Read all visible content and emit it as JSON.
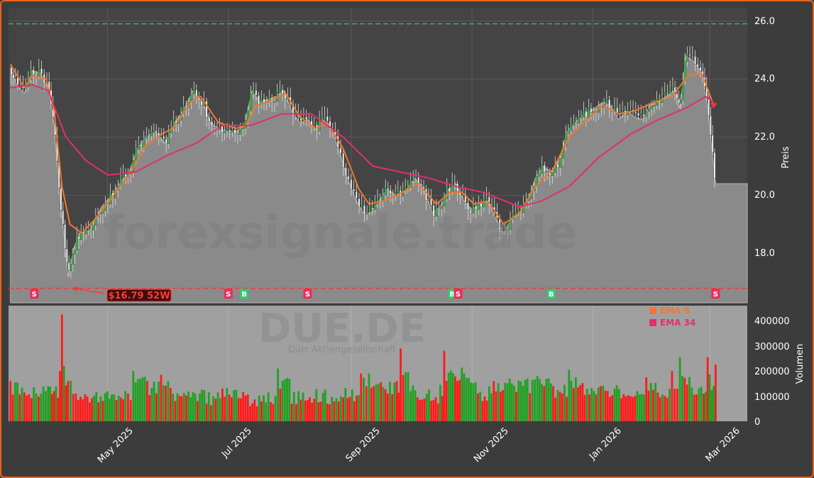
{
  "chart_data": [
    {
      "type": "candlestick",
      "ticker": "DUE.DE",
      "ticker_subtitle": "Dürr Aktiengesellschaft",
      "watermark": "forexsignale.trade",
      "ylabel": "Preis",
      "ylim": [
        16.3,
        26.45
      ],
      "yticks": [
        "18.0",
        "20.0",
        "22.0",
        "24.0",
        "26.0"
      ],
      "xlabels": [
        "May 2025",
        "Jul 2025",
        "Sep 2025",
        "Nov 2025",
        "Jan 2026",
        "Mar 2026"
      ],
      "x_range": [
        "2025-03-12",
        "2026-03-20"
      ],
      "price_points": [
        [
          "2025-03-13",
          24.4
        ],
        [
          "2025-03-16",
          23.8
        ],
        [
          "2025-03-20",
          23.5
        ],
        [
          "2025-03-24",
          24.3
        ],
        [
          "2025-03-28",
          24.2
        ],
        [
          "2025-04-01",
          23.7
        ],
        [
          "2025-04-04",
          22.4
        ],
        [
          "2025-04-07",
          19.8
        ],
        [
          "2025-04-09",
          18.6
        ],
        [
          "2025-04-11",
          17.2
        ],
        [
          "2025-04-14",
          18.2
        ],
        [
          "2025-04-17",
          18.7
        ],
        [
          "2025-04-22",
          18.8
        ],
        [
          "2025-04-28",
          19.6
        ],
        [
          "2025-05-03",
          20.0
        ],
        [
          "2025-05-07",
          20.4
        ],
        [
          "2025-05-12",
          20.8
        ],
        [
          "2025-05-16",
          21.6
        ],
        [
          "2025-05-20",
          22.0
        ],
        [
          "2025-05-25",
          22.2
        ],
        [
          "2025-05-30",
          21.8
        ],
        [
          "2025-06-04",
          22.5
        ],
        [
          "2025-06-09",
          23.0
        ],
        [
          "2025-06-13",
          23.6
        ],
        [
          "2025-06-18",
          23.2
        ],
        [
          "2025-06-22",
          22.5
        ],
        [
          "2025-06-26",
          22.3
        ],
        [
          "2025-07-01",
          22.2
        ],
        [
          "2025-07-05",
          22.2
        ],
        [
          "2025-07-09",
          22.4
        ],
        [
          "2025-07-13",
          23.6
        ],
        [
          "2025-07-17",
          23.2
        ],
        [
          "2025-07-21",
          23.3
        ],
        [
          "2025-07-25",
          23.4
        ],
        [
          "2025-07-29",
          23.6
        ],
        [
          "2025-08-02",
          22.9
        ],
        [
          "2025-08-06",
          22.5
        ],
        [
          "2025-08-10",
          22.6
        ],
        [
          "2025-08-14",
          22.3
        ],
        [
          "2025-08-18",
          22.6
        ],
        [
          "2025-08-22",
          22.3
        ],
        [
          "2025-08-26",
          21.5
        ],
        [
          "2025-08-30",
          20.6
        ],
        [
          "2025-09-03",
          19.9
        ],
        [
          "2025-09-07",
          19.4
        ],
        [
          "2025-09-11",
          19.4
        ],
        [
          "2025-09-15",
          19.8
        ],
        [
          "2025-09-19",
          20.2
        ],
        [
          "2025-09-24",
          20.0
        ],
        [
          "2025-09-29",
          20.2
        ],
        [
          "2025-10-03",
          20.6
        ],
        [
          "2025-10-07",
          20.3
        ],
        [
          "2025-10-12",
          19.4
        ],
        [
          "2025-10-16",
          19.6
        ],
        [
          "2025-10-20",
          20.2
        ],
        [
          "2025-10-24",
          20.4
        ],
        [
          "2025-10-28",
          19.8
        ],
        [
          "2025-11-01",
          19.5
        ],
        [
          "2025-11-05",
          19.7
        ],
        [
          "2025-11-09",
          19.8
        ],
        [
          "2025-11-13",
          19.2
        ],
        [
          "2025-11-17",
          18.7
        ],
        [
          "2025-11-21",
          19.2
        ],
        [
          "2025-11-25",
          19.4
        ],
        [
          "2025-11-29",
          19.8
        ],
        [
          "2025-12-03",
          20.6
        ],
        [
          "2025-12-07",
          21.0
        ],
        [
          "2025-12-11",
          20.8
        ],
        [
          "2025-12-15",
          21.2
        ],
        [
          "2025-12-19",
          22.2
        ],
        [
          "2025-12-23",
          22.5
        ],
        [
          "2025-12-28",
          22.8
        ],
        [
          "2026-01-02",
          23.0
        ],
        [
          "2026-01-06",
          23.2
        ],
        [
          "2026-01-10",
          23.1
        ],
        [
          "2026-01-14",
          22.6
        ],
        [
          "2026-01-18",
          22.9
        ],
        [
          "2026-01-22",
          22.7
        ],
        [
          "2026-01-26",
          22.6
        ],
        [
          "2026-01-30",
          23.1
        ],
        [
          "2026-02-03",
          23.2
        ],
        [
          "2026-02-07",
          23.4
        ],
        [
          "2026-02-11",
          23.6
        ],
        [
          "2026-02-14",
          23.0
        ],
        [
          "2026-02-17",
          24.8
        ],
        [
          "2026-02-21",
          24.6
        ],
        [
          "2026-02-25",
          24.2
        ],
        [
          "2026-02-28",
          23.0
        ],
        [
          "2026-03-02",
          21.6
        ],
        [
          "2026-03-04",
          20.4
        ],
        [
          "2026-03-20",
          20.4
        ]
      ],
      "series": [
        {
          "name": "EMA 8",
          "color": "#f07830",
          "points": [
            [
              "2025-03-13",
              24.5
            ],
            [
              "2025-03-20",
              23.7
            ],
            [
              "2025-03-24",
              24.1
            ],
            [
              "2025-03-31",
              24.0
            ],
            [
              "2025-04-04",
              22.9
            ],
            [
              "2025-04-08",
              20.3
            ],
            [
              "2025-04-12",
              19.0
            ],
            [
              "2025-04-18",
              18.7
            ],
            [
              "2025-04-25",
              19.2
            ],
            [
              "2025-05-04",
              20.0
            ],
            [
              "2025-05-12",
              20.7
            ],
            [
              "2025-05-20",
              21.7
            ],
            [
              "2025-05-28",
              22.1
            ],
            [
              "2025-06-03",
              22.3
            ],
            [
              "2025-06-12",
              23.2
            ],
            [
              "2025-06-17",
              23.4
            ],
            [
              "2025-06-26",
              22.5
            ],
            [
              "2025-07-05",
              22.3
            ],
            [
              "2025-07-10",
              22.4
            ],
            [
              "2025-07-15",
              23.1
            ],
            [
              "2025-07-20",
              23.2
            ],
            [
              "2025-07-30",
              23.5
            ],
            [
              "2025-08-06",
              22.7
            ],
            [
              "2025-08-14",
              22.3
            ],
            [
              "2025-08-20",
              22.5
            ],
            [
              "2025-08-28",
              21.6
            ],
            [
              "2025-09-05",
              20.2
            ],
            [
              "2025-09-10",
              19.7
            ],
            [
              "2025-09-17",
              19.8
            ],
            [
              "2025-09-24",
              20.0
            ],
            [
              "2025-10-05",
              20.4
            ],
            [
              "2025-10-14",
              19.7
            ],
            [
              "2025-10-21",
              20.1
            ],
            [
              "2025-10-27",
              20.1
            ],
            [
              "2025-11-02",
              19.7
            ],
            [
              "2025-11-09",
              19.8
            ],
            [
              "2025-11-17",
              19.0
            ],
            [
              "2025-11-25",
              19.4
            ],
            [
              "2025-12-03",
              20.3
            ],
            [
              "2025-12-12",
              20.9
            ],
            [
              "2025-12-20",
              22.0
            ],
            [
              "2025-12-29",
              22.6
            ],
            [
              "2026-01-06",
              23.1
            ],
            [
              "2026-01-14",
              22.8
            ],
            [
              "2026-01-22",
              22.9
            ],
            [
              "2026-02-01",
              23.2
            ],
            [
              "2026-02-10",
              23.4
            ],
            [
              "2026-02-18",
              24.1
            ],
            [
              "2026-02-25",
              24.2
            ],
            [
              "2026-03-03",
              23.1
            ]
          ]
        },
        {
          "name": "EMA 34",
          "color": "#e0306a",
          "points": [
            [
              "2025-03-13",
              23.7
            ],
            [
              "2025-03-24",
              23.8
            ],
            [
              "2025-04-01",
              23.6
            ],
            [
              "2025-04-10",
              22.0
            ],
            [
              "2025-04-20",
              21.2
            ],
            [
              "2025-05-01",
              20.7
            ],
            [
              "2025-05-15",
              20.8
            ],
            [
              "2025-06-01",
              21.4
            ],
            [
              "2025-06-15",
              21.8
            ],
            [
              "2025-06-28",
              22.4
            ],
            [
              "2025-07-12",
              22.4
            ],
            [
              "2025-07-28",
              22.8
            ],
            [
              "2025-08-12",
              22.8
            ],
            [
              "2025-08-28",
              22.0
            ],
            [
              "2025-09-12",
              21.0
            ],
            [
              "2025-09-26",
              20.8
            ],
            [
              "2025-10-10",
              20.6
            ],
            [
              "2025-10-24",
              20.3
            ],
            [
              "2025-11-07",
              20.1
            ],
            [
              "2025-11-25",
              19.6
            ],
            [
              "2025-12-06",
              19.8
            ],
            [
              "2025-12-20",
              20.3
            ],
            [
              "2026-01-04",
              21.3
            ],
            [
              "2026-01-20",
              22.1
            ],
            [
              "2026-02-03",
              22.6
            ],
            [
              "2026-02-17",
              23.0
            ],
            [
              "2026-02-27",
              23.4
            ],
            [
              "2026-03-03",
              23.2
            ]
          ]
        }
      ],
      "ref_lines": [
        {
          "value": 25.9,
          "color": "#3cb371",
          "style": "dashed"
        },
        {
          "value": 16.8,
          "color": "#ff3030",
          "style": "dashed"
        }
      ],
      "annotation": {
        "text": "$16.79 52W",
        "date": "2025-04-13",
        "value": 16.8
      },
      "signals": [
        {
          "type": "S",
          "date": "2025-03-25"
        },
        {
          "type": "B",
          "date": "2025-05-14"
        },
        {
          "type": "S",
          "date": "2025-07-01"
        },
        {
          "type": "B",
          "date": "2025-07-09"
        },
        {
          "type": "S",
          "date": "2025-08-10"
        },
        {
          "type": "B",
          "date": "2025-10-22"
        },
        {
          "type": "S",
          "date": "2025-10-25"
        },
        {
          "type": "B",
          "date": "2025-12-11"
        },
        {
          "type": "S",
          "date": "2026-03-04"
        }
      ],
      "legend": [
        {
          "label": "EMA 8",
          "color": "#f07830"
        },
        {
          "label": "EMA 34",
          "color": "#e0306a"
        }
      ]
    },
    {
      "type": "bar",
      "ylabel": "Volumen",
      "ylim": [
        0,
        460000
      ],
      "yticks": [
        "0",
        "100000",
        "200000",
        "300000",
        "400000"
      ],
      "colors": {
        "up": "#22a022",
        "down": "#ff1a1a"
      },
      "volume_points": [
        [
          "2025-03-13",
          160000,
          "d"
        ],
        [
          "2025-03-20",
          115000,
          "d"
        ],
        [
          "2025-03-26",
          110000,
          "u"
        ],
        [
          "2025-04-01",
          140000,
          "u"
        ],
        [
          "2025-04-04",
          120000,
          "d"
        ],
        [
          "2025-04-07",
          200000,
          "d"
        ],
        [
          "2025-04-08",
          425000,
          "d"
        ],
        [
          "2025-04-09",
          220000,
          "u"
        ],
        [
          "2025-04-11",
          160000,
          "d"
        ],
        [
          "2025-04-15",
          110000,
          "d"
        ],
        [
          "2025-04-22",
          75000,
          "d"
        ],
        [
          "2025-05-02",
          90000,
          "u"
        ],
        [
          "2025-05-10",
          120000,
          "u"
        ],
        [
          "2025-05-14",
          200000,
          "u"
        ],
        [
          "2025-05-21",
          160000,
          "d"
        ],
        [
          "2025-05-28",
          185000,
          "d"
        ],
        [
          "2025-06-03",
          110000,
          "u"
        ],
        [
          "2025-06-12",
          95000,
          "u"
        ],
        [
          "2025-06-20",
          70000,
          "d"
        ],
        [
          "2025-06-28",
          130000,
          "d"
        ],
        [
          "2025-07-05",
          125000,
          "u"
        ],
        [
          "2025-07-12",
          60000,
          "d"
        ],
        [
          "2025-07-20",
          75000,
          "u"
        ],
        [
          "2025-07-26",
          210000,
          "u"
        ],
        [
          "2025-08-02",
          70000,
          "d"
        ],
        [
          "2025-08-10",
          85000,
          "d"
        ],
        [
          "2025-08-20",
          70000,
          "d"
        ],
        [
          "2025-08-28",
          95000,
          "d"
        ],
        [
          "2025-09-06",
          190000,
          "d"
        ],
        [
          "2025-09-10",
          190000,
          "u"
        ],
        [
          "2025-09-16",
          155000,
          "d"
        ],
        [
          "2025-09-24",
          160000,
          "d"
        ],
        [
          "2025-09-26",
          290000,
          "d"
        ],
        [
          "2025-10-01",
          120000,
          "u"
        ],
        [
          "2025-10-08",
          90000,
          "d"
        ],
        [
          "2025-10-16",
          145000,
          "u"
        ],
        [
          "2025-10-18",
          280000,
          "d"
        ],
        [
          "2025-10-28",
          190000,
          "u"
        ],
        [
          "2025-11-04",
          110000,
          "d"
        ],
        [
          "2025-11-12",
          160000,
          "d"
        ],
        [
          "2025-11-20",
          170000,
          "u"
        ],
        [
          "2025-11-29",
          170000,
          "u"
        ],
        [
          "2025-12-04",
          180000,
          "u"
        ],
        [
          "2025-12-12",
          140000,
          "d"
        ],
        [
          "2025-12-20",
          205000,
          "u"
        ],
        [
          "2025-12-28",
          105000,
          "d"
        ],
        [
          "2026-01-05",
          140000,
          "d"
        ],
        [
          "2026-01-12",
          130000,
          "u"
        ],
        [
          "2026-01-20",
          100000,
          "d"
        ],
        [
          "2026-01-28",
          175000,
          "d"
        ],
        [
          "2026-02-04",
          95000,
          "d"
        ],
        [
          "2026-02-10",
          200000,
          "d"
        ],
        [
          "2026-02-14",
          255000,
          "u"
        ],
        [
          "2026-02-20",
          135000,
          "u"
        ],
        [
          "2026-02-26",
          110000,
          "d"
        ],
        [
          "2026-02-28",
          255000,
          "d"
        ],
        [
          "2026-03-02",
          125000,
          "u"
        ],
        [
          "2026-03-04",
          225000,
          "d"
        ]
      ]
    }
  ]
}
